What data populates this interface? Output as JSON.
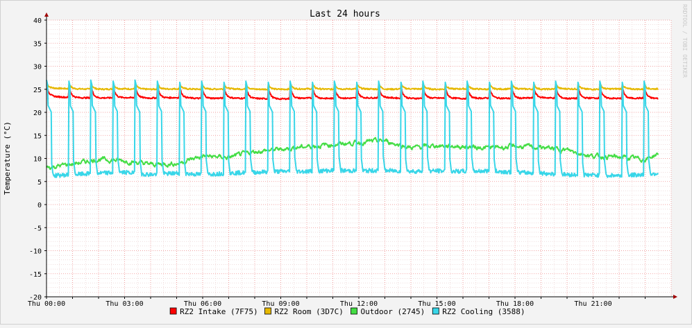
{
  "chart_data": {
    "type": "line",
    "title": "Last 24 hours",
    "ylabel": "Temperature (°C)",
    "xlabel": "",
    "watermark": "RRDTOOL / TOBI OETIKER",
    "ylim": [
      -20,
      40
    ],
    "yticks": [
      40,
      35,
      30,
      25,
      20,
      15,
      10,
      5,
      0,
      -5,
      -10,
      -15,
      -20
    ],
    "xlim_hours": [
      0,
      24
    ],
    "xticks": [
      {
        "hour": 0,
        "label": "Thu 00:00"
      },
      {
        "hour": 3,
        "label": "Thu 03:00"
      },
      {
        "hour": 6,
        "label": "Thu 06:00"
      },
      {
        "hour": 9,
        "label": "Thu 09:00"
      },
      {
        "hour": 12,
        "label": "Thu 12:00"
      },
      {
        "hour": 15,
        "label": "Thu 15:00"
      },
      {
        "hour": 18,
        "label": "Thu 18:00"
      },
      {
        "hour": 21,
        "label": "Thu 21:00"
      }
    ],
    "grid": true,
    "legend_position": "bottom",
    "x_hours": [
      0,
      1,
      2,
      3,
      4,
      5,
      6,
      7,
      8,
      9,
      10,
      11,
      12,
      13,
      14,
      15,
      16,
      17,
      18,
      19,
      20,
      21,
      22,
      23,
      23.5
    ],
    "series": [
      {
        "name": "RZ2 Intake (7F75)",
        "color": "#ff0000",
        "values": [
          23.5,
          23.2,
          23.1,
          23.2,
          23.1,
          23.2,
          23.0,
          23.1,
          23.0,
          22.9,
          23.1,
          23.0,
          23.1,
          23.2,
          23.0,
          23.1,
          23.0,
          23.1,
          23.0,
          23.2,
          23.0,
          23.1,
          23.0,
          23.1,
          23.0
        ],
        "cycle": {
          "period_hours": 0.85,
          "peak": 25.2
        }
      },
      {
        "name": "RZ2 Room (3D7C)",
        "color": "#e6b800",
        "values": [
          25.3,
          25.1,
          25.0,
          25.1,
          25.0,
          25.1,
          25.0,
          25.1,
          25.0,
          25.0,
          25.1,
          25.0,
          25.1,
          25.0,
          25.1,
          25.0,
          25.1,
          25.0,
          25.1,
          25.0,
          25.1,
          25.0,
          25.1,
          25.0,
          25.1
        ],
        "cycle": {
          "period_hours": 0.85,
          "peak": 26.0
        }
      },
      {
        "name": "Outdoor (2745)",
        "color": "#44dd44",
        "values": [
          8.0,
          8.8,
          9.8,
          9.5,
          8.7,
          8.9,
          10.5,
          10.2,
          11.5,
          12.0,
          12.6,
          13.0,
          13.5,
          13.8,
          12.3,
          12.8,
          12.6,
          12.3,
          12.6,
          12.4,
          11.8,
          10.5,
          10.3,
          9.8,
          11.0
        ],
        "noise": 0.7
      },
      {
        "name": "RZ2 Cooling (3588)",
        "color": "#38d6e8",
        "values": [
          6.2,
          6.5,
          6.8,
          7.0,
          6.5,
          6.8,
          6.5,
          6.8,
          7.0,
          7.2,
          7.2,
          7.4,
          7.3,
          7.4,
          7.2,
          7.3,
          7.2,
          7.3,
          7.0,
          6.8,
          6.5,
          6.4,
          6.3,
          6.5,
          6.8
        ],
        "cycle": {
          "period_hours": 0.85,
          "peak": 27.0,
          "mid": 20.0
        }
      }
    ]
  }
}
